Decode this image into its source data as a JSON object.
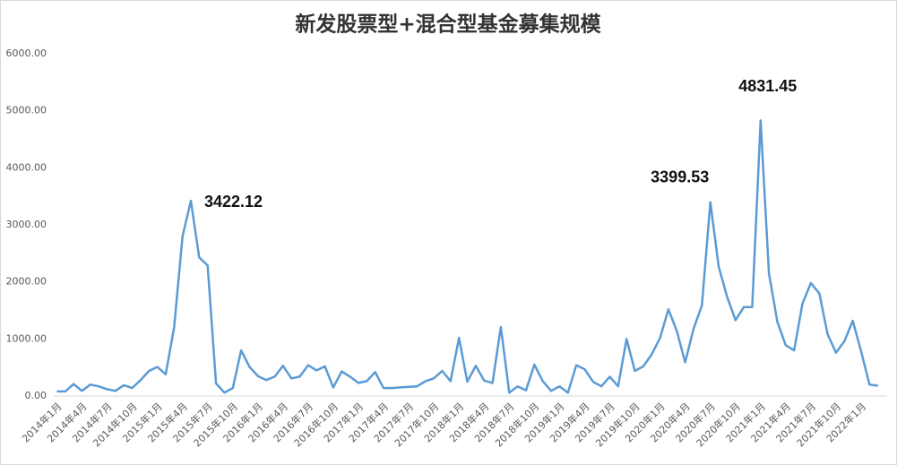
{
  "chart_data": {
    "type": "line",
    "title": "新发股票型+混合型基金募集规模",
    "categories": [
      "2014年1月",
      null,
      null,
      "2014年4月",
      null,
      null,
      "2014年7月",
      null,
      null,
      "2014年10月",
      null,
      null,
      "2015年1月",
      null,
      null,
      "2015年4月",
      null,
      null,
      "2015年7月",
      null,
      null,
      "2015年10月",
      null,
      null,
      "2016年1月",
      null,
      null,
      "2016年4月",
      null,
      null,
      "2016年7月",
      null,
      null,
      "2016年10月",
      null,
      null,
      "2017年1月",
      null,
      null,
      "2017年4月",
      null,
      null,
      "2017年7月",
      null,
      null,
      "2017年10月",
      null,
      null,
      "2018年1月",
      null,
      null,
      "2018年4月",
      null,
      null,
      "2018年7月",
      null,
      null,
      "2018年10月",
      null,
      null,
      "2019年1月",
      null,
      null,
      "2019年4月",
      null,
      null,
      "2019年7月",
      null,
      null,
      "2019年10月",
      null,
      null,
      "2020年1月",
      null,
      null,
      "2020年4月",
      null,
      null,
      "2020年7月",
      null,
      null,
      "2020年10月",
      null,
      null,
      "2021年1月",
      null,
      null,
      "2021年4月",
      null,
      null,
      "2021年7月",
      null,
      null,
      "2021年10月",
      null,
      null,
      "2022年1月",
      null,
      null
    ],
    "values": [
      80,
      80,
      210,
      90,
      200,
      170,
      120,
      90,
      190,
      140,
      280,
      440,
      510,
      380,
      1200,
      2800,
      3422.12,
      2430,
      2290,
      220,
      60,
      140,
      800,
      510,
      350,
      280,
      340,
      530,
      310,
      340,
      540,
      450,
      520,
      150,
      430,
      340,
      230,
      260,
      420,
      140,
      140,
      150,
      160,
      170,
      260,
      310,
      440,
      260,
      1020,
      250,
      530,
      270,
      230,
      1210,
      60,
      170,
      100,
      550,
      260,
      90,
      170,
      60,
      540,
      470,
      250,
      170,
      340,
      170,
      1000,
      440,
      520,
      730,
      1020,
      1520,
      1140,
      590,
      1180,
      1590,
      3399.53,
      2270,
      1740,
      1330,
      1560,
      1560,
      4831.45,
      2150,
      1300,
      890,
      800,
      1620,
      1980,
      1800,
      1080,
      760,
      960,
      1320,
      780,
      200,
      180
    ],
    "value_labels": [
      null,
      null,
      null,
      null,
      null,
      null,
      null,
      null,
      null,
      null,
      null,
      null,
      null,
      null,
      null,
      null,
      "3422.12",
      null,
      null,
      null,
      null,
      null,
      null,
      null,
      null,
      null,
      null,
      null,
      null,
      null,
      null,
      null,
      null,
      null,
      null,
      null,
      null,
      null,
      null,
      null,
      null,
      null,
      null,
      null,
      null,
      null,
      null,
      null,
      null,
      null,
      null,
      null,
      null,
      null,
      null,
      null,
      null,
      null,
      null,
      null,
      null,
      null,
      null,
      null,
      null,
      null,
      null,
      null,
      null,
      null,
      null,
      null,
      null,
      null,
      null,
      null,
      null,
      null,
      "3399.53",
      null,
      null,
      null,
      null,
      null,
      "4831.45",
      null,
      null,
      null,
      null,
      null,
      null,
      null,
      null,
      null,
      null,
      null,
      null,
      null,
      null
    ],
    "color": "#5b9bd5",
    "ylim": [
      0,
      6000
    ],
    "yticks": [
      {
        "value": 0,
        "label": "0.00"
      },
      {
        "value": 1000,
        "label": "1000.00"
      },
      {
        "value": 2000,
        "label": "2000.00"
      },
      {
        "value": 3000,
        "label": "3000.00"
      },
      {
        "value": 4000,
        "label": "4000.00"
      },
      {
        "value": 5000,
        "label": "5000.00"
      },
      {
        "value": 6000,
        "label": "6000.00"
      }
    ],
    "grid": false
  }
}
